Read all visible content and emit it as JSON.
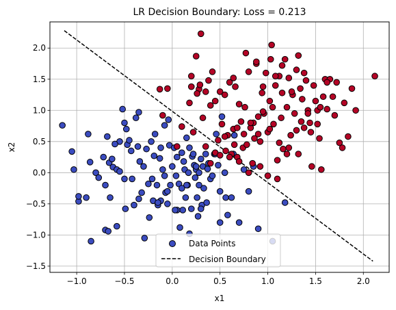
{
  "chart_data": {
    "type": "scatter",
    "title": "LR Decision Boundary: Loss = 0.213",
    "xlabel": "x1",
    "ylabel": "x2",
    "xlim": [
      -1.28,
      2.27
    ],
    "ylim": [
      -1.6,
      2.42
    ],
    "xticks": [
      -1.0,
      -0.5,
      0.0,
      0.5,
      1.0,
      1.5,
      2.0
    ],
    "xtick_labels": [
      "−1.0",
      "−0.5",
      "0.0",
      "0.5",
      "1.0",
      "1.5",
      "2.0"
    ],
    "yticks": [
      -1.5,
      -1.0,
      -0.5,
      0.0,
      0.5,
      1.0,
      1.5,
      2.0
    ],
    "ytick_labels": [
      "−1.5",
      "−1.0",
      "−0.5",
      "0.0",
      "0.5",
      "1.0",
      "1.5",
      "2.0"
    ],
    "grid": true,
    "legend_position": "lower-center",
    "legend": [
      {
        "label": "Data Points",
        "marker": "circle"
      },
      {
        "label": "Decision Boundary",
        "marker": "dashed-line"
      }
    ],
    "colors": {
      "class0": "#3b4cc0",
      "class1": "#b40426",
      "edge": "#000000",
      "boundary": "#000000",
      "grid": "#b0b0b0",
      "legend_marker": "#3b4cc0"
    },
    "boundary": {
      "x": [
        -1.13,
        2.1
      ],
      "y": [
        2.28,
        -1.42
      ]
    },
    "series": [
      {
        "class": 0,
        "x": [
          -1.15,
          -1.05,
          -1.03,
          -0.98,
          -0.98,
          -0.88,
          -0.86,
          -0.85,
          -0.8,
          -0.77,
          -0.72,
          -0.7,
          -0.7,
          -0.68,
          -0.67,
          -0.66,
          -0.65,
          -0.63,
          -0.62,
          -0.58,
          -0.58,
          -0.55,
          -0.55,
          -0.52,
          -0.5,
          -0.5,
          -0.49,
          -0.48,
          -0.47,
          -0.45,
          -0.43,
          -0.42,
          -0.4,
          -0.38,
          -0.36,
          -0.35,
          -0.34,
          -0.32,
          -0.3,
          -0.29,
          -0.27,
          -0.24,
          -0.22,
          -0.21,
          -0.2,
          -0.19,
          -0.18,
          -0.16,
          -0.15,
          -0.13,
          -0.12,
          -0.1,
          -0.08,
          -0.08,
          -0.07,
          -0.05,
          -0.04,
          -0.03,
          -0.02,
          0.0,
          0.02,
          0.04,
          0.05,
          0.07,
          0.08,
          0.1,
          0.11,
          0.12,
          0.13,
          0.14,
          0.15,
          0.16,
          0.17,
          0.18,
          0.18,
          0.2,
          0.21,
          0.22,
          0.23,
          0.24,
          0.25,
          0.26,
          0.27,
          0.28,
          0.3,
          0.31,
          0.32,
          0.33,
          0.35,
          0.36,
          0.37,
          0.38,
          0.4,
          0.42,
          0.44,
          0.46,
          0.48,
          0.5,
          0.52,
          0.55,
          0.58,
          0.62,
          0.64,
          0.65,
          0.7,
          0.75,
          0.8,
          0.85,
          0.9,
          1.18,
          -0.9,
          -0.6,
          -0.35,
          -0.25,
          -0.12,
          0.05,
          0.28,
          0.45,
          0.5,
          0.56,
          1.05,
          0.3,
          -0.15,
          -0.05,
          0.15,
          0.25,
          0.1,
          0.03
        ],
        "y": [
          0.76,
          0.34,
          0.05,
          -0.46,
          -0.38,
          0.62,
          0.17,
          -1.1,
          0.0,
          -0.08,
          0.25,
          -0.92,
          -0.2,
          0.58,
          -0.94,
          0.16,
          -0.4,
          0.22,
          0.09,
          -0.86,
          0.05,
          0.5,
          0.02,
          1.02,
          0.8,
          -0.1,
          -0.58,
          0.7,
          0.45,
          0.52,
          0.35,
          -0.1,
          -0.52,
          0.88,
          0.42,
          0.97,
          0.18,
          -0.32,
          0.1,
          -1.05,
          0.38,
          -0.72,
          0.5,
          -0.1,
          -0.45,
          0.27,
          0.62,
          -0.2,
          -0.52,
          0.23,
          0.4,
          0.05,
          -0.05,
          0.76,
          -0.32,
          -0.5,
          0.85,
          0.44,
          -0.2,
          0.1,
          0.4,
          -0.05,
          0.25,
          -0.18,
          -0.88,
          0.32,
          -0.6,
          0.18,
          0.05,
          -0.4,
          0.56,
          -0.2,
          0.0,
          -0.98,
          0.4,
          -0.58,
          0.26,
          0.3,
          0.12,
          -0.08,
          0.05,
          -0.4,
          -0.7,
          -0.2,
          0.22,
          -0.52,
          0.1,
          -0.25,
          0.3,
          -0.48,
          0.06,
          0.15,
          -0.1,
          -0.05,
          0.3,
          0.62,
          0.12,
          -0.3,
          0.9,
          0.0,
          -0.68,
          -0.4,
          0.3,
          0.6,
          -0.8,
          0.05,
          -0.3,
          0.1,
          -0.9,
          -0.48,
          -0.4,
          0.46,
          -0.42,
          -0.18,
          -0.45,
          -0.6,
          0.0,
          0.3,
          -0.8,
          -0.4,
          -1.1,
          -0.58,
          -0.48,
          -0.3,
          -0.2,
          0.1,
          -0.25,
          -0.6
        ]
      },
      {
        "class": 1,
        "x": [
          -0.13,
          -0.1,
          -0.05,
          0.05,
          0.1,
          0.18,
          0.2,
          0.22,
          0.25,
          0.28,
          0.3,
          0.32,
          0.35,
          0.38,
          0.4,
          0.42,
          0.45,
          0.48,
          0.5,
          0.52,
          0.55,
          0.58,
          0.6,
          0.62,
          0.64,
          0.66,
          0.68,
          0.7,
          0.72,
          0.74,
          0.76,
          0.78,
          0.8,
          0.82,
          0.84,
          0.86,
          0.88,
          0.9,
          0.92,
          0.94,
          0.96,
          0.98,
          1.0,
          1.02,
          1.04,
          1.06,
          1.08,
          1.1,
          1.12,
          1.14,
          1.16,
          1.18,
          1.2,
          1.22,
          1.24,
          1.26,
          1.28,
          1.3,
          1.32,
          1.34,
          1.36,
          1.38,
          1.4,
          1.42,
          1.44,
          1.46,
          1.48,
          1.5,
          1.52,
          1.54,
          1.56,
          1.58,
          1.6,
          1.62,
          1.65,
          1.7,
          1.72,
          1.75,
          1.78,
          1.8,
          1.84,
          1.88,
          1.92,
          2.12,
          0.26,
          0.29,
          0.64,
          0.77,
          0.88,
          0.95,
          1.03,
          1.08,
          1.15,
          1.25,
          1.38,
          0.56,
          0.6,
          0.7,
          0.8,
          0.92,
          1.0,
          1.1,
          1.2,
          1.3,
          0.4,
          0.45,
          0.5,
          0.65,
          0.75,
          0.85,
          0.95,
          1.05,
          1.15,
          1.35,
          1.45,
          1.55,
          0.2,
          0.35,
          0.55,
          0.68,
          0.82,
          0.9,
          1.02,
          1.12,
          1.22,
          1.32,
          1.42,
          1.52,
          1.62,
          1.68
        ],
        "y": [
          1.34,
          0.92,
          1.35,
          0.42,
          0.74,
          1.12,
          1.38,
          0.65,
          1.87,
          1.34,
          2.23,
          0.88,
          1.3,
          1.48,
          1.08,
          1.62,
          1.15,
          0.52,
          1.3,
          0.78,
          1.25,
          0.6,
          1.45,
          0.3,
          0.7,
          1.38,
          0.25,
          1.1,
          0.82,
          0.4,
          1.05,
          0.45,
          1.62,
          0.72,
          0.15,
          0.55,
          1.75,
          0.9,
          0.5,
          1.28,
          0.95,
          1.6,
          0.65,
          1.15,
          2.05,
          0.78,
          1.4,
          0.2,
          1.55,
          0.88,
          0.38,
          1.82,
          1.05,
          1.52,
          0.6,
          1.25,
          0.95,
          1.65,
          0.3,
          1.35,
          1.18,
          0.72,
          1.48,
          1.0,
          0.8,
          0.1,
          1.4,
          1.15,
          1.0,
          0.55,
          0.05,
          1.22,
          1.5,
          1.02,
          1.5,
          0.92,
          1.45,
          0.48,
          0.4,
          1.12,
          0.58,
          1.35,
          1.0,
          1.55,
          1.27,
          1.41,
          1.52,
          1.92,
          1.78,
          1.38,
          1.82,
          1.55,
          1.72,
          1.3,
          1.6,
          0.35,
          0.25,
          0.18,
          0.0,
          0.1,
          -0.05,
          -0.1,
          0.3,
          0.68,
          0.15,
          0.32,
          0.28,
          0.45,
          0.62,
          0.8,
          0.98,
          1.05,
          1.28,
          0.82,
          0.65,
          1.05,
          1.55,
          0.42,
          0.58,
          0.72,
          0.8,
          0.62,
          0.7,
          0.48,
          0.4,
          1.88,
          0.95,
          0.78,
          1.45,
          1.22
        ]
      }
    ]
  }
}
